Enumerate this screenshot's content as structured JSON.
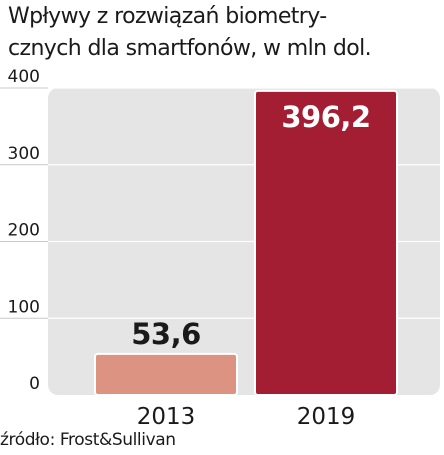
{
  "chart_data": {
    "type": "bar",
    "title_lines": [
      "Wpływy z rozwiązań biometry-",
      "cznych dla smartfonów, w mln dol."
    ],
    "categories": [
      "2013",
      "2019"
    ],
    "values": [
      53.6,
      396.2
    ],
    "value_labels": [
      "53,6",
      "396,2"
    ],
    "ylim": [
      0,
      400
    ],
    "yticks": [
      "0",
      "100",
      "200",
      "300",
      "400"
    ],
    "grid": true,
    "bar_colors": [
      "#dc9381",
      "#a31e32"
    ],
    "source": "źródło: Frost&Sullivan"
  }
}
